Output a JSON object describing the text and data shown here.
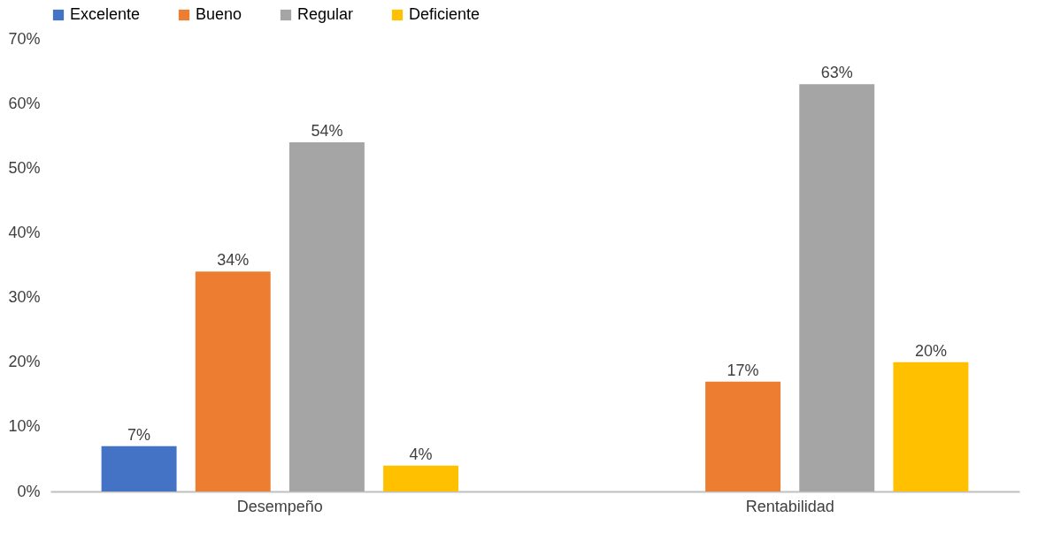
{
  "chart_data": {
    "type": "bar",
    "categories": [
      "Desempeño",
      "Rentabilidad"
    ],
    "series": [
      {
        "name": "Excelente",
        "color": "#4472c4",
        "values": [
          7,
          null
        ],
        "value_labels": [
          "7%",
          null
        ]
      },
      {
        "name": "Bueno",
        "color": "#ed7d31",
        "values": [
          34,
          17
        ],
        "value_labels": [
          "34%",
          "17%"
        ]
      },
      {
        "name": "Regular",
        "color": "#a5a5a5",
        "values": [
          54,
          63
        ],
        "value_labels": [
          "54%",
          "63%"
        ]
      },
      {
        "name": "Deficiente",
        "color": "#ffc000",
        "values": [
          4,
          20
        ],
        "value_labels": [
          "4%",
          "20%"
        ]
      }
    ],
    "ylim": [
      0,
      70
    ],
    "yticks": [
      {
        "value": 0,
        "label": "0%"
      },
      {
        "value": 10,
        "label": "10%"
      },
      {
        "value": 20,
        "label": "20%"
      },
      {
        "value": 30,
        "label": "30%"
      },
      {
        "value": 40,
        "label": "40%"
      },
      {
        "value": 50,
        "label": "50%"
      },
      {
        "value": 60,
        "label": "60%"
      },
      {
        "value": 70,
        "label": "70%"
      }
    ],
    "grid": false,
    "legend": "top"
  }
}
